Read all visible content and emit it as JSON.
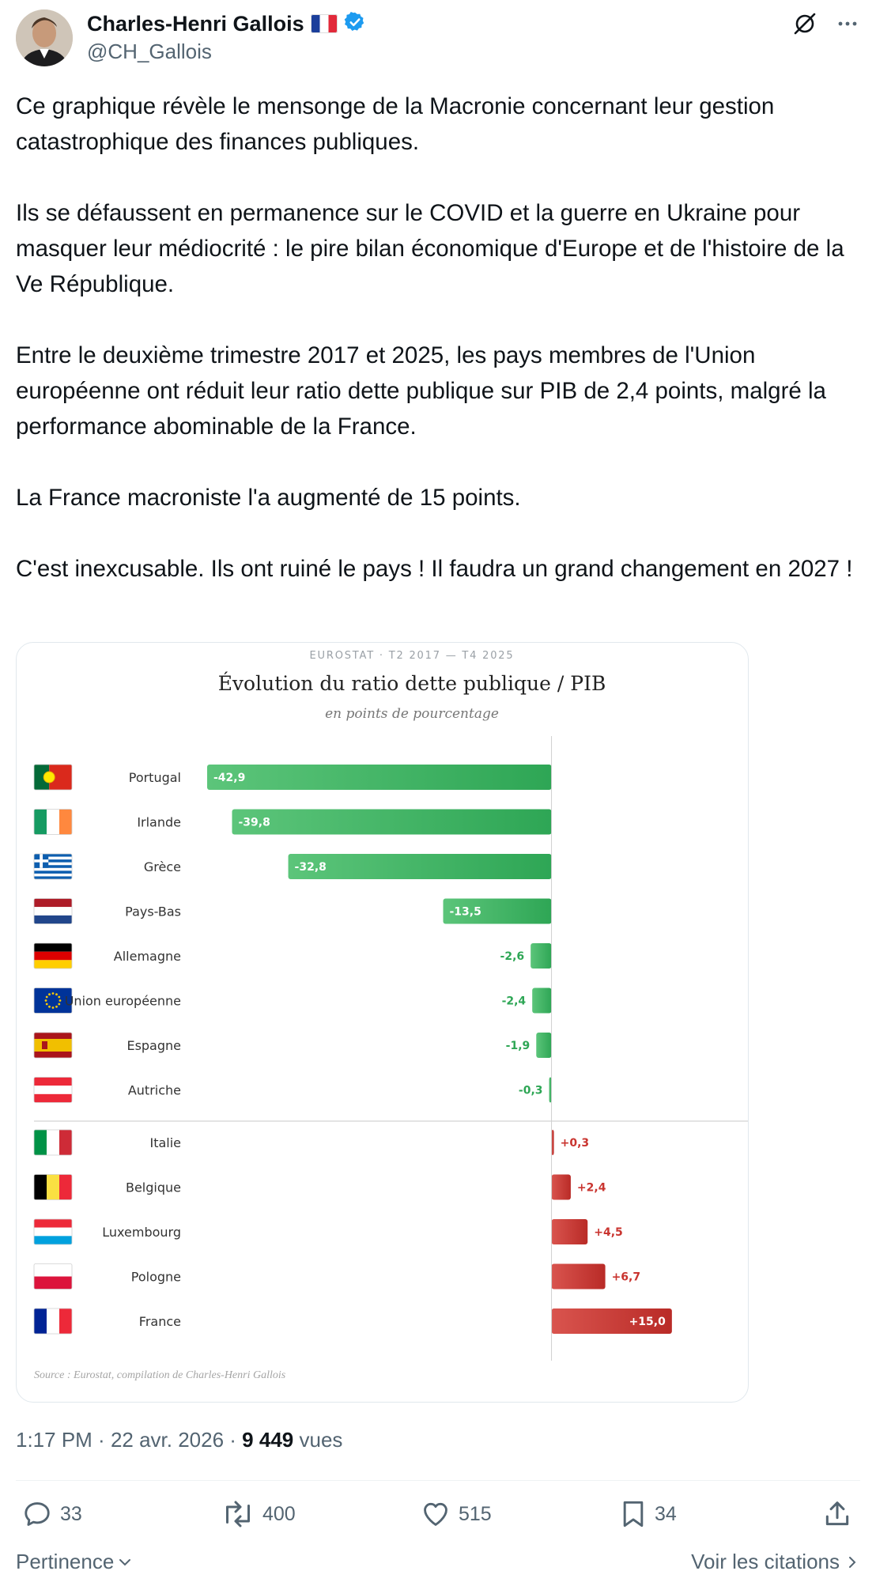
{
  "author": {
    "display_name": "Charles-Henri Gallois",
    "handle": "@CH_Gallois",
    "flag_icon": "flag-france-icon",
    "verified_icon": "verified-badge-icon"
  },
  "tweet_text": "Ce graphique révèle le mensonge de la Macronie concernant leur gestion catastrophique des finances publiques.\n\nIls se défaussent en permanence sur le COVID et la guerre en Ukraine pour masquer leur médiocrité : le pire bilan économique d'Europe et de l'histoire de la Ve République.\n\nEntre le deuxième trimestre 2017 et 2025, les pays membres de l'Union européenne ont réduit leur ratio dette publique sur PIB de 2,4 points, malgré la performance abominable de la France.\n\nLa France macroniste l'a augmenté de 15 points.\n\nC'est inexcusable. Ils ont ruiné le pays ! Il faudra un grand changement en 2027 !",
  "chart_data": {
    "type": "bar",
    "orientation": "horizontal",
    "header": "EUROSTAT · T2 2017 — T4 2025",
    "title": "Évolution du ratio dette publique / PIB",
    "subtitle": "en points de pourcentage",
    "source": "Source : Eurostat, compilation de Charles-Henri Gallois",
    "categories": [
      "Portugal",
      "Irlande",
      "Grèce",
      "Pays-Bas",
      "Allemagne",
      "Union européenne",
      "Espagne",
      "Autriche",
      "Italie",
      "Belgique",
      "Luxembourg",
      "Pologne",
      "France"
    ],
    "values": [
      -42.9,
      -39.8,
      -32.8,
      -13.5,
      -2.6,
      -2.4,
      -1.9,
      -0.3,
      0.3,
      2.4,
      4.5,
      6.7,
      15.0
    ],
    "value_labels": [
      "-42,9",
      "-39,8",
      "-32,8",
      "-13,5",
      "-2,6",
      "-2,4",
      "-1,9",
      "-0,3",
      "+0,3",
      "+2,4",
      "+4,5",
      "+6,7",
      "+15,0"
    ],
    "colors": {
      "negative": "#3db563",
      "positive": "#c9342f"
    },
    "xlim": [
      -43,
      22.5
    ]
  },
  "meta": {
    "time": "1:17 PM",
    "date": "22 avr. 2026",
    "views_count": "9 449",
    "views_label": "vues"
  },
  "actions": {
    "replies": "33",
    "reposts": "400",
    "likes": "515",
    "bookmarks": "34"
  },
  "footer": {
    "sort_label": "Pertinence",
    "quotes_label": "Voir les citations"
  }
}
